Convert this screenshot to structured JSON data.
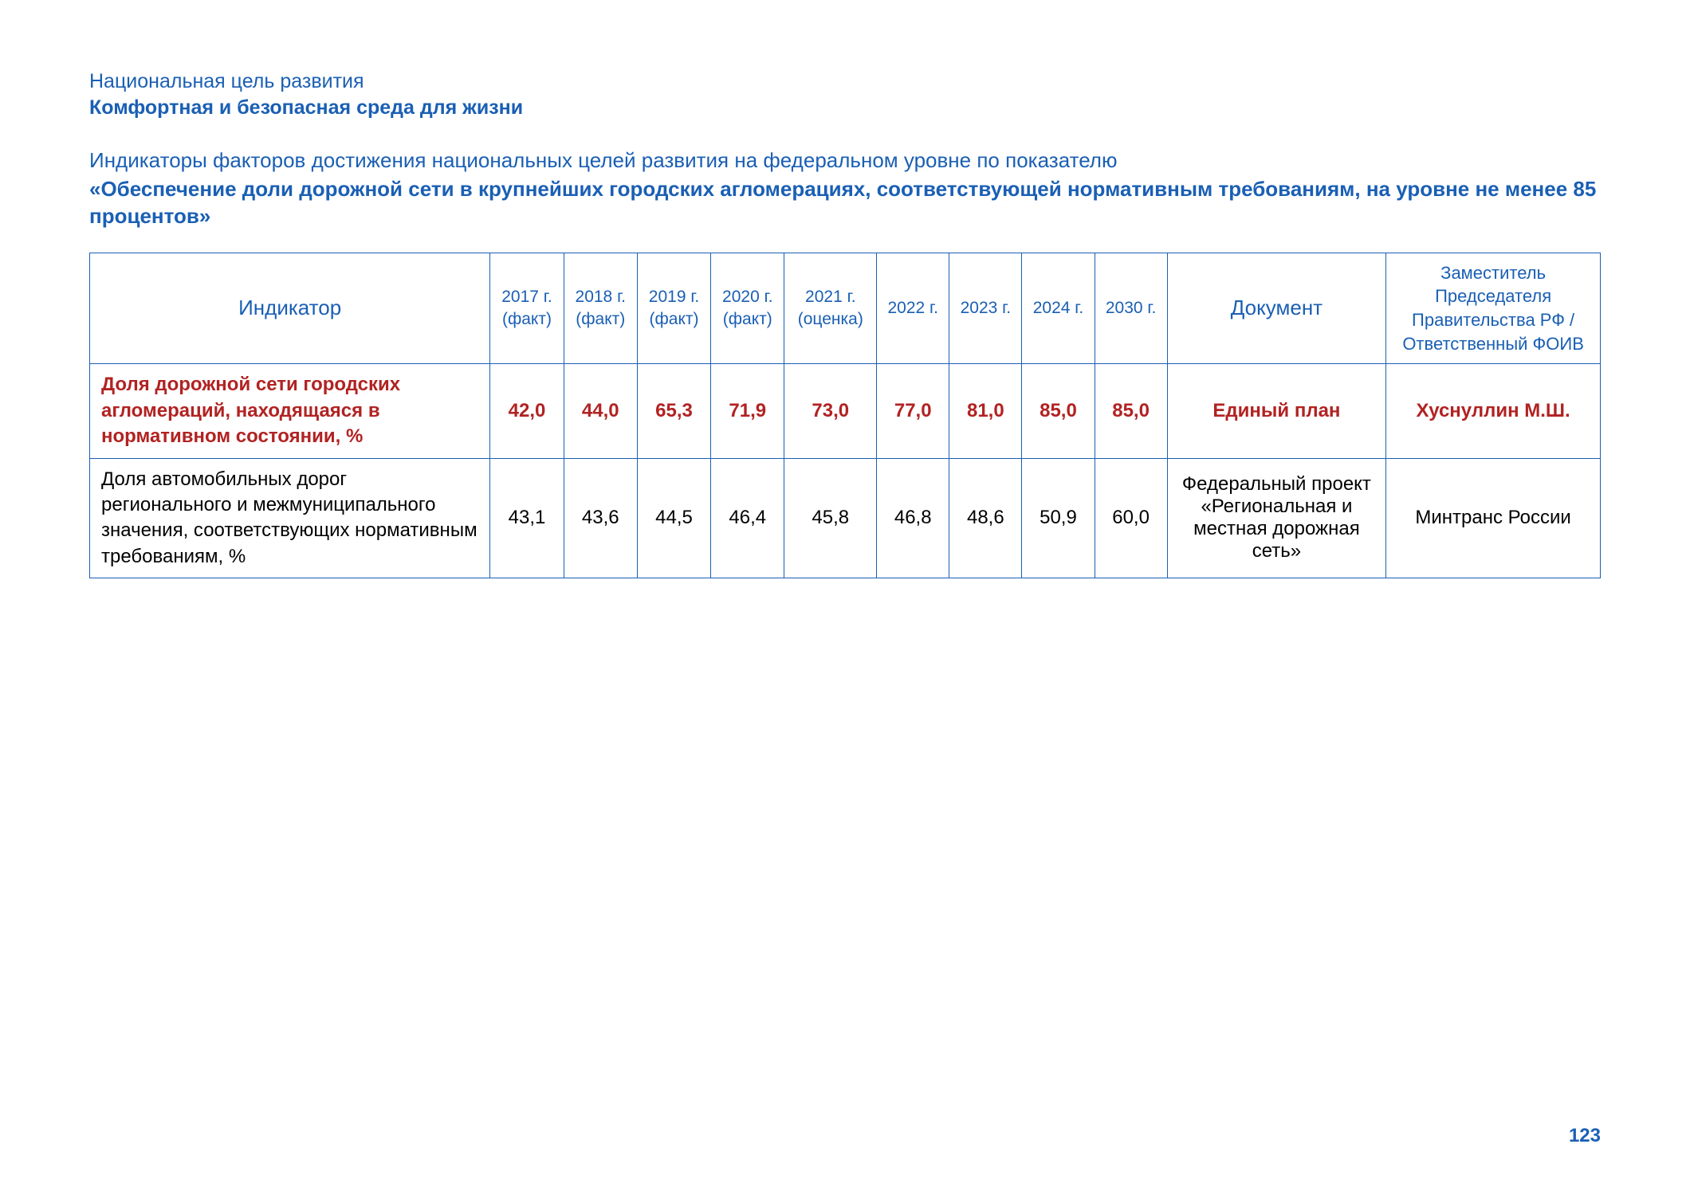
{
  "header": {
    "label": "Национальная цель развития",
    "title": "Комфортная и безопасная среда для жизни"
  },
  "subheader": {
    "label": "Индикаторы факторов достижения национальных целей развития на федеральном уровне по показателю",
    "title": "«Обеспечение доли дорожной сети в крупнейших городских агломерациях, соответствующей нормативным требованиям, на уровне не менее 85 процентов»"
  },
  "table": {
    "columns": {
      "indicator": "Индикатор",
      "y2017": "2017 г. (факт)",
      "y2018": "2018 г. (факт)",
      "y2019": "2019 г. (факт)",
      "y2020": "2020 г. (факт)",
      "y2021": "2021 г. (оценка)",
      "y2022": "2022 г.",
      "y2023": "2023 г.",
      "y2024": "2024 г.",
      "y2030": "2030 г.",
      "doc": "Документ",
      "resp": "Заместитель Председателя Правительства РФ / Ответственный ФОИВ"
    },
    "rows": [
      {
        "highlight": true,
        "indicator": "Доля дорожной сети городских агломераций, находящаяся в нормативном состоянии, %",
        "v": [
          "42,0",
          "44,0",
          "65,3",
          "71,9",
          "73,0",
          "77,0",
          "81,0",
          "85,0",
          "85,0"
        ],
        "doc": "Единый план",
        "resp": "Хуснуллин М.Ш."
      },
      {
        "highlight": false,
        "indicator": "Доля автомобильных дорог регионального и межмуниципального значения, соответствующих нормативным требованиям, %",
        "v": [
          "43,1",
          "43,6",
          "44,5",
          "46,4",
          "45,8",
          "46,8",
          "48,6",
          "50,9",
          "60,0"
        ],
        "doc": "Федеральный проект «Региональная и местная дорожная сеть»",
        "resp": "Минтранс России"
      }
    ]
  },
  "page_number": "123",
  "colors": {
    "blue": "#1a5fb4",
    "highlight": "#b22222",
    "black": "#000000",
    "background": "#ffffff"
  }
}
